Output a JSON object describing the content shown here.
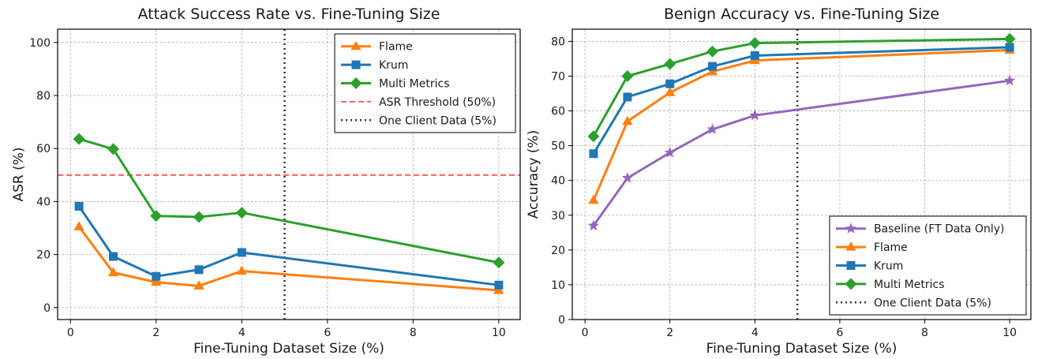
{
  "chart_data": [
    {
      "type": "line",
      "title": "Attack Success Rate vs. Fine-Tuning Size",
      "xlabel": "Fine-Tuning Dataset Size (%)",
      "ylabel": "ASR (%)",
      "xlim": [
        -0.3,
        10.5
      ],
      "ylim": [
        -4.5,
        105
      ],
      "xticks": [
        0,
        2,
        4,
        6,
        8,
        10
      ],
      "yticks": [
        0,
        20,
        40,
        60,
        80,
        100
      ],
      "grid": true,
      "legend_position": "top-right",
      "x": [
        0.2,
        1,
        2,
        3,
        4,
        10
      ],
      "series": [
        {
          "name": "Flame",
          "color": "#ff7f0e",
          "marker": "triangle",
          "values": [
            30.5,
            13.2,
            9.6,
            8.2,
            13.8,
            6.5
          ]
        },
        {
          "name": "Krum",
          "color": "#1f77b4",
          "marker": "square",
          "values": [
            38.2,
            19.3,
            11.8,
            14.3,
            20.8,
            8.5
          ]
        },
        {
          "name": "Multi Metrics",
          "color": "#2ca02c",
          "marker": "diamond",
          "values": [
            63.6,
            59.8,
            34.6,
            34.2,
            35.8,
            17.0
          ]
        }
      ],
      "hlines": [
        {
          "name": "ASR Threshold (50%)",
          "y": 50,
          "color": "#ff4d4d",
          "style": "dashed"
        }
      ],
      "vlines": [
        {
          "name": "One Client Data (5%)",
          "x": 5,
          "color": "#333333",
          "style": "dotted"
        }
      ],
      "legend_order": [
        "Flame",
        "Krum",
        "Multi Metrics",
        "ASR Threshold (50%)",
        "One Client Data (5%)"
      ]
    },
    {
      "type": "line",
      "title": "Benign Accuracy vs. Fine-Tuning Size",
      "xlabel": "Fine-Tuning Dataset Size (%)",
      "ylabel": "Accuracy (%)",
      "xlim": [
        -0.3,
        10.5
      ],
      "ylim": [
        0,
        83.5
      ],
      "xticks": [
        0,
        2,
        4,
        6,
        8,
        10
      ],
      "yticks": [
        0,
        10,
        20,
        30,
        40,
        50,
        60,
        70,
        80
      ],
      "grid": true,
      "legend_position": "bottom-right",
      "x": [
        0.2,
        1,
        2,
        3,
        4,
        10
      ],
      "series": [
        {
          "name": "Baseline (FT Data Only)",
          "color": "#9467bd",
          "marker": "star",
          "values": [
            27.0,
            40.7,
            48.0,
            54.7,
            58.7,
            68.7
          ]
        },
        {
          "name": "Flame",
          "color": "#ff7f0e",
          "marker": "triangle",
          "values": [
            34.3,
            57.0,
            65.3,
            71.3,
            74.5,
            77.5
          ]
        },
        {
          "name": "Krum",
          "color": "#1f77b4",
          "marker": "square",
          "values": [
            47.7,
            64.0,
            67.8,
            72.8,
            75.9,
            78.3
          ]
        },
        {
          "name": "Multi Metrics",
          "color": "#2ca02c",
          "marker": "diamond",
          "values": [
            52.7,
            70.0,
            73.5,
            77.1,
            79.5,
            80.7
          ]
        }
      ],
      "hlines": [],
      "vlines": [
        {
          "name": "One Client Data (5%)",
          "x": 5,
          "color": "#333333",
          "style": "dotted"
        }
      ],
      "legend_order": [
        "Baseline (FT Data Only)",
        "Flame",
        "Krum",
        "Multi Metrics",
        "One Client Data (5%)"
      ]
    }
  ]
}
